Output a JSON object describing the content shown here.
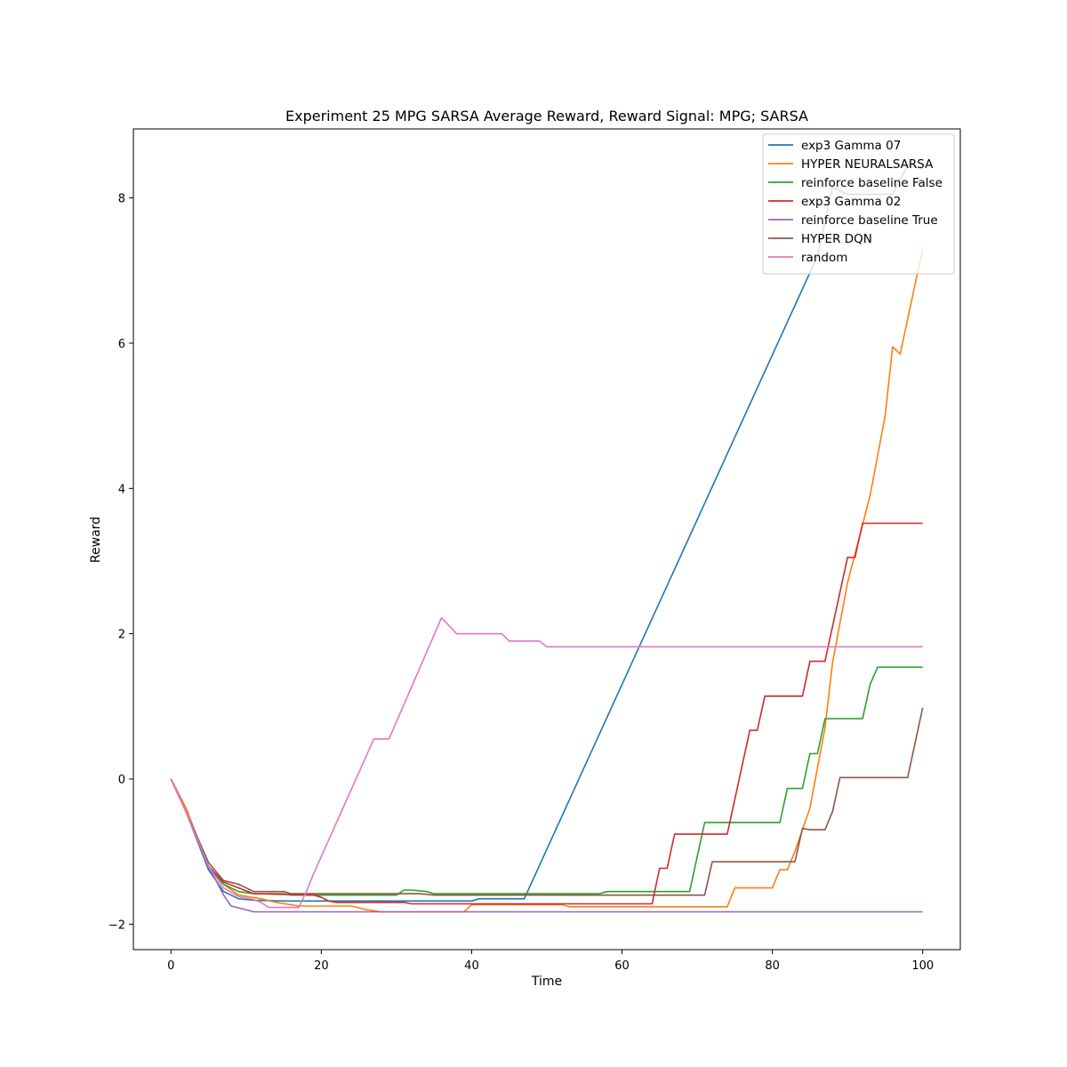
{
  "chart_data": {
    "type": "line",
    "title": "Experiment 25 MPG SARSA Average Reward,  Reward Signal: MPG; SARSA",
    "xlabel": "Time",
    "ylabel": "Reward",
    "xlim": [
      -5,
      105
    ],
    "ylim": [
      -2.35,
      8.95
    ],
    "xticks": [
      0,
      20,
      40,
      60,
      80,
      100
    ],
    "yticks": [
      -2,
      0,
      2,
      4,
      6,
      8
    ],
    "grid": false,
    "legend_position": "top-right",
    "series": [
      {
        "name": "exp3 Gamma 07",
        "color": "#1f77b4",
        "points": [
          [
            0,
            0
          ],
          [
            2,
            -0.45
          ],
          [
            5,
            -1.25
          ],
          [
            7,
            -1.55
          ],
          [
            9,
            -1.65
          ],
          [
            11,
            -1.67
          ],
          [
            15,
            -1.68
          ],
          [
            21,
            -1.68
          ],
          [
            40,
            -1.68
          ],
          [
            41,
            -1.65
          ],
          [
            47,
            -1.65
          ],
          [
            86,
            7.2
          ],
          [
            88,
            8.15
          ],
          [
            90,
            8.05
          ],
          [
            96,
            8.05
          ],
          [
            98,
            8.45
          ],
          [
            100,
            8.4
          ]
        ]
      },
      {
        "name": "HYPER NEURALSARSA",
        "color": "#ff7f0e",
        "points": [
          [
            0,
            0
          ],
          [
            2,
            -0.4
          ],
          [
            5,
            -1.2
          ],
          [
            7,
            -1.45
          ],
          [
            9,
            -1.6
          ],
          [
            12,
            -1.65
          ],
          [
            14,
            -1.7
          ],
          [
            17,
            -1.75
          ],
          [
            24,
            -1.75
          ],
          [
            26,
            -1.8
          ],
          [
            28,
            -1.83
          ],
          [
            39,
            -1.83
          ],
          [
            40,
            -1.73
          ],
          [
            52,
            -1.73
          ],
          [
            53,
            -1.76
          ],
          [
            74,
            -1.76
          ],
          [
            75,
            -1.5
          ],
          [
            80,
            -1.5
          ],
          [
            81,
            -1.25
          ],
          [
            82,
            -1.25
          ],
          [
            83,
            -1.0
          ],
          [
            85,
            -0.4
          ],
          [
            87,
            0.7
          ],
          [
            88,
            1.6
          ],
          [
            90,
            2.7
          ],
          [
            93,
            3.9
          ],
          [
            95,
            5.0
          ],
          [
            96,
            5.95
          ],
          [
            97,
            5.85
          ],
          [
            100,
            7.3
          ]
        ]
      },
      {
        "name": "reinforce baseline False",
        "color": "#2ca02c",
        "points": [
          [
            0,
            0
          ],
          [
            2,
            -0.45
          ],
          [
            5,
            -1.2
          ],
          [
            7,
            -1.45
          ],
          [
            9,
            -1.55
          ],
          [
            11,
            -1.58
          ],
          [
            15,
            -1.58
          ],
          [
            16,
            -1.6
          ],
          [
            30,
            -1.6
          ],
          [
            31,
            -1.53
          ],
          [
            32,
            -1.53
          ],
          [
            34,
            -1.55
          ],
          [
            35,
            -1.58
          ],
          [
            57,
            -1.58
          ],
          [
            58,
            -1.55
          ],
          [
            69,
            -1.55
          ],
          [
            71,
            -0.6
          ],
          [
            81,
            -0.6
          ],
          [
            82,
            -0.13
          ],
          [
            84,
            -0.13
          ],
          [
            85,
            0.35
          ],
          [
            86,
            0.35
          ],
          [
            87,
            0.83
          ],
          [
            92,
            0.83
          ],
          [
            93,
            1.3
          ],
          [
            94,
            1.54
          ],
          [
            100,
            1.54
          ]
        ]
      },
      {
        "name": "exp3 Gamma 02",
        "color": "#d62728",
        "points": [
          [
            0,
            0
          ],
          [
            2,
            -0.45
          ],
          [
            5,
            -1.2
          ],
          [
            7,
            -1.42
          ],
          [
            9,
            -1.5
          ],
          [
            11,
            -1.58
          ],
          [
            19,
            -1.6
          ],
          [
            20,
            -1.63
          ],
          [
            21,
            -1.68
          ],
          [
            22,
            -1.7
          ],
          [
            31,
            -1.7
          ],
          [
            32,
            -1.72
          ],
          [
            64,
            -1.72
          ],
          [
            65,
            -1.23
          ],
          [
            66,
            -1.23
          ],
          [
            67,
            -0.76
          ],
          [
            74,
            -0.76
          ],
          [
            77,
            0.67
          ],
          [
            78,
            0.67
          ],
          [
            79,
            1.14
          ],
          [
            84,
            1.14
          ],
          [
            85,
            1.62
          ],
          [
            87,
            1.62
          ],
          [
            90,
            3.05
          ],
          [
            91,
            3.05
          ],
          [
            92,
            3.52
          ],
          [
            100,
            3.52
          ]
        ]
      },
      {
        "name": "reinforce baseline True",
        "color": "#9467bd",
        "points": [
          [
            0,
            0
          ],
          [
            2,
            -0.45
          ],
          [
            5,
            -1.2
          ],
          [
            7,
            -1.6
          ],
          [
            8,
            -1.75
          ],
          [
            10,
            -1.8
          ],
          [
            11,
            -1.83
          ],
          [
            100,
            -1.83
          ]
        ]
      },
      {
        "name": "HYPER DQN",
        "color": "#8c564b",
        "points": [
          [
            0,
            0
          ],
          [
            2,
            -0.45
          ],
          [
            5,
            -1.15
          ],
          [
            7,
            -1.4
          ],
          [
            9,
            -1.45
          ],
          [
            11,
            -1.55
          ],
          [
            15,
            -1.55
          ],
          [
            16,
            -1.58
          ],
          [
            33,
            -1.58
          ],
          [
            35,
            -1.6
          ],
          [
            70,
            -1.6
          ],
          [
            71,
            -1.6
          ],
          [
            72,
            -1.14
          ],
          [
            83,
            -1.14
          ],
          [
            84,
            -0.68
          ],
          [
            85,
            -0.7
          ],
          [
            87,
            -0.7
          ],
          [
            88,
            -0.45
          ],
          [
            89,
            0.02
          ],
          [
            98,
            0.02
          ],
          [
            100,
            0.98
          ]
        ]
      },
      {
        "name": "random",
        "color": "#e377c2",
        "points": [
          [
            0,
            0
          ],
          [
            2,
            -0.45
          ],
          [
            5,
            -1.2
          ],
          [
            7,
            -1.5
          ],
          [
            9,
            -1.62
          ],
          [
            11,
            -1.66
          ],
          [
            12,
            -1.7
          ],
          [
            13,
            -1.77
          ],
          [
            17,
            -1.77
          ],
          [
            18,
            -1.55
          ],
          [
            19,
            -1.3
          ],
          [
            27,
            0.55
          ],
          [
            29,
            0.55
          ],
          [
            36,
            2.22
          ],
          [
            38,
            2.0
          ],
          [
            44,
            2.0
          ],
          [
            45,
            1.9
          ],
          [
            49,
            1.9
          ],
          [
            50,
            1.82
          ],
          [
            100,
            1.82
          ]
        ]
      }
    ]
  }
}
